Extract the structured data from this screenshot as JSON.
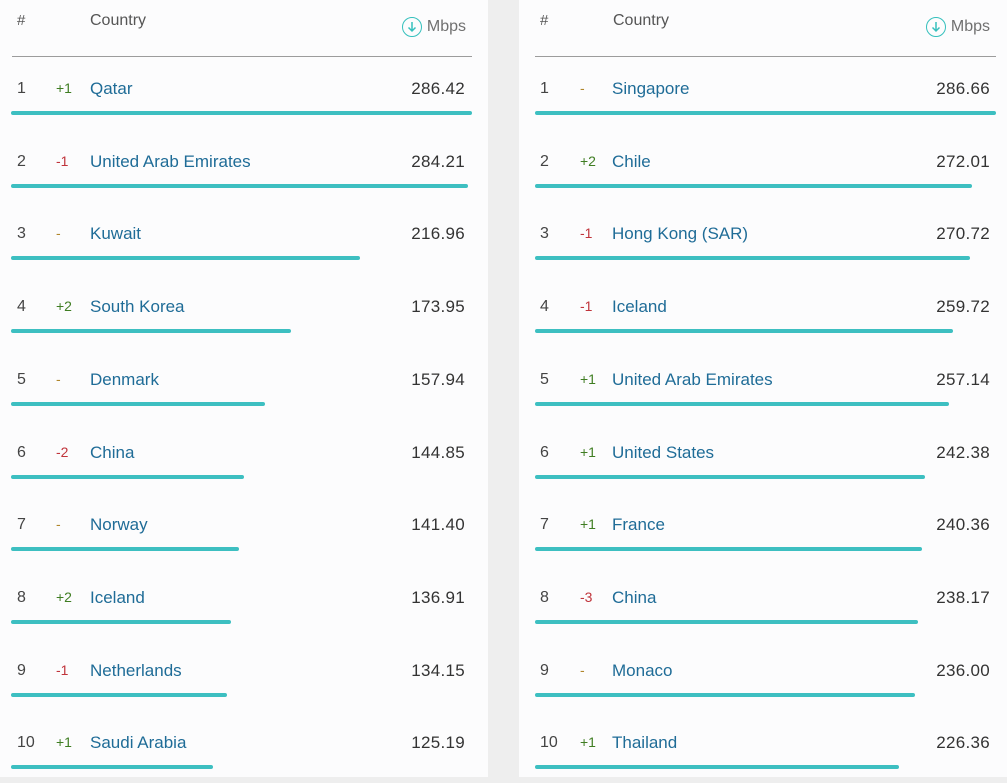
{
  "header": {
    "num_label": "#",
    "country_label": "Country",
    "unit_label": "Mbps",
    "unit_icon": "download-circle-icon"
  },
  "colors": {
    "bar": "#3dbfc1",
    "country_link": "#1f6c97",
    "change_up": "#3f7d22",
    "change_down": "#c0343b",
    "change_same": "#b0862b"
  },
  "left": {
    "rows": [
      {
        "rank": "1",
        "change": "+1",
        "country": "Qatar",
        "value": "286.42"
      },
      {
        "rank": "2",
        "change": "-1",
        "country": "United Arab Emirates",
        "value": "284.21"
      },
      {
        "rank": "3",
        "change": "-",
        "country": "Kuwait",
        "value": "216.96"
      },
      {
        "rank": "4",
        "change": "+2",
        "country": "South Korea",
        "value": "173.95"
      },
      {
        "rank": "5",
        "change": "-",
        "country": "Denmark",
        "value": "157.94"
      },
      {
        "rank": "6",
        "change": "-2",
        "country": "China",
        "value": "144.85"
      },
      {
        "rank": "7",
        "change": "-",
        "country": "Norway",
        "value": "141.40"
      },
      {
        "rank": "8",
        "change": "+2",
        "country": "Iceland",
        "value": "136.91"
      },
      {
        "rank": "9",
        "change": "-1",
        "country": "Netherlands",
        "value": "134.15"
      },
      {
        "rank": "10",
        "change": "+1",
        "country": "Saudi Arabia",
        "value": "125.19"
      }
    ]
  },
  "right": {
    "rows": [
      {
        "rank": "1",
        "change": "-",
        "country": "Singapore",
        "value": "286.66"
      },
      {
        "rank": "2",
        "change": "+2",
        "country": "Chile",
        "value": "272.01"
      },
      {
        "rank": "3",
        "change": "-1",
        "country": "Hong Kong (SAR)",
        "value": "270.72"
      },
      {
        "rank": "4",
        "change": "-1",
        "country": "Iceland",
        "value": "259.72"
      },
      {
        "rank": "5",
        "change": "+1",
        "country": "United Arab Emirates",
        "value": "257.14"
      },
      {
        "rank": "6",
        "change": "+1",
        "country": "United States",
        "value": "242.38"
      },
      {
        "rank": "7",
        "change": "+1",
        "country": "France",
        "value": "240.36"
      },
      {
        "rank": "8",
        "change": "-3",
        "country": "China",
        "value": "238.17"
      },
      {
        "rank": "9",
        "change": "-",
        "country": "Monaco",
        "value": "236.00"
      },
      {
        "rank": "10",
        "change": "+1",
        "country": "Thailand",
        "value": "226.36"
      }
    ]
  }
}
